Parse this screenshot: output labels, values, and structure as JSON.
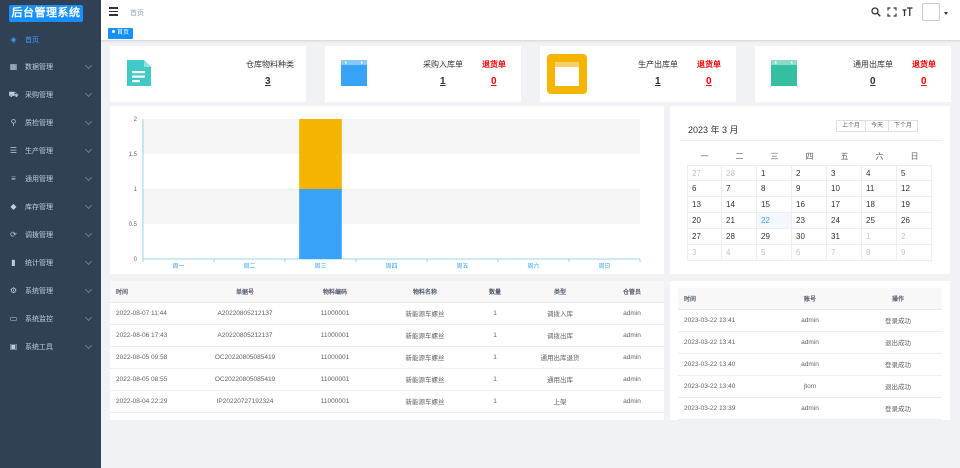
{
  "app": {
    "logo": "后台管理系统"
  },
  "sidebar": {
    "items": [
      {
        "label": "首页",
        "icon": "dashboard-icon",
        "glyph": "◈"
      },
      {
        "label": "数据管理",
        "icon": "grid-icon",
        "glyph": "▦"
      },
      {
        "label": "采购管理",
        "icon": "cart-icon",
        "glyph": "⛟"
      },
      {
        "label": "质检管理",
        "icon": "search-icon",
        "glyph": "⚲"
      },
      {
        "label": "生产管理",
        "icon": "sliders-icon",
        "glyph": "☰"
      },
      {
        "label": "通用管理",
        "icon": "list-icon",
        "glyph": "≡"
      },
      {
        "label": "库存管理",
        "icon": "layers-icon",
        "glyph": "◆"
      },
      {
        "label": "调拨管理",
        "icon": "swap-icon",
        "glyph": "⟳"
      },
      {
        "label": "统计管理",
        "icon": "bar-chart-icon",
        "glyph": "▮"
      },
      {
        "label": "系统管理",
        "icon": "gear-icon",
        "glyph": "⚙"
      },
      {
        "label": "系统监控",
        "icon": "monitor-icon",
        "glyph": "▭"
      },
      {
        "label": "系统工具",
        "icon": "toolbox-icon",
        "glyph": "▣"
      }
    ]
  },
  "header": {
    "breadcrumb": "首页"
  },
  "tags": {
    "home": "首页"
  },
  "cards": [
    {
      "label": "仓库物料种类",
      "value": "3",
      "color": "#40c9c6"
    },
    {
      "label": "采购入库单",
      "value": "1",
      "return_label": "退货单",
      "return_value": "0",
      "color": "#36a3f7"
    },
    {
      "label": "生产出库单",
      "value": "1",
      "return_label": "退货单",
      "return_value": "0",
      "color": "#f4b400"
    },
    {
      "label": "通用出库单",
      "value": "0",
      "return_label": "退货单",
      "return_value": "0",
      "color": "#34bfa3"
    }
  ],
  "chart_data": {
    "type": "bar",
    "stacked": true,
    "categories": [
      "周一",
      "周二",
      "周三",
      "周四",
      "周五",
      "周六",
      "周日"
    ],
    "series": [
      {
        "values": [
          0,
          0,
          1,
          0,
          0,
          0,
          0
        ],
        "color": "#36a3f7"
      },
      {
        "values": [
          0,
          0,
          1,
          0,
          0,
          0,
          0
        ],
        "color": "#f4b400"
      }
    ],
    "ylim": [
      0,
      2
    ],
    "yticks": [
      "0",
      "0.5",
      "1",
      "1.5",
      "2"
    ],
    "grid": "banded"
  },
  "calendar": {
    "title": "2023 年 3 月",
    "buttons": [
      "上个月",
      "今天",
      "下个月"
    ],
    "weekdays": [
      "一",
      "二",
      "三",
      "四",
      "五",
      "六",
      "日"
    ],
    "weeks": [
      [
        [
          "27",
          1
        ],
        [
          "28",
          1
        ],
        [
          "1",
          0
        ],
        [
          "2",
          0
        ],
        [
          "3",
          0
        ],
        [
          "4",
          0
        ],
        [
          "5",
          0
        ]
      ],
      [
        [
          "6",
          0
        ],
        [
          "7",
          0
        ],
        [
          "8",
          0
        ],
        [
          "9",
          0
        ],
        [
          "10",
          0
        ],
        [
          "11",
          0
        ],
        [
          "12",
          0
        ]
      ],
      [
        [
          "13",
          0
        ],
        [
          "14",
          0
        ],
        [
          "15",
          0
        ],
        [
          "16",
          0
        ],
        [
          "17",
          0
        ],
        [
          "18",
          0
        ],
        [
          "19",
          0
        ]
      ],
      [
        [
          "20",
          0
        ],
        [
          "21",
          0
        ],
        [
          "22",
          2
        ],
        [
          "23",
          0
        ],
        [
          "24",
          0
        ],
        [
          "25",
          0
        ],
        [
          "26",
          0
        ]
      ],
      [
        [
          "27",
          0
        ],
        [
          "28",
          0
        ],
        [
          "29",
          0
        ],
        [
          "30",
          0
        ],
        [
          "31",
          0
        ],
        [
          "1",
          1
        ],
        [
          "2",
          1
        ]
      ],
      [
        [
          "3",
          1
        ],
        [
          "4",
          1
        ],
        [
          "5",
          1
        ],
        [
          "6",
          1
        ],
        [
          "7",
          1
        ],
        [
          "8",
          1
        ],
        [
          "9",
          1
        ]
      ]
    ]
  },
  "records_table": {
    "columns": [
      "时间",
      "单据号",
      "物料编码",
      "物料名称",
      "数量",
      "类型",
      "仓管员"
    ],
    "rows": [
      [
        "2022-08-07 11:44",
        "A20220805212137",
        "11000001",
        "新能源车螺丝",
        "1",
        "调拨入库",
        "admin"
      ],
      [
        "2022-08-06 17:43",
        "A20220805212137",
        "11000001",
        "新能源车螺丝",
        "1",
        "调拨出库",
        "admin"
      ],
      [
        "2022-08-05 09:58",
        "OC20220805085419",
        "11000001",
        "新能源车螺丝",
        "1",
        "通用出库退货",
        "admin"
      ],
      [
        "2022-08-05 08:55",
        "OC20220805085419",
        "11000001",
        "新能源车螺丝",
        "1",
        "通用出库",
        "admin"
      ],
      [
        "2022-08-04 22:29",
        "IP20220727192324",
        "11000001",
        "新能源车螺丝",
        "1",
        "上架",
        "admin"
      ]
    ]
  },
  "login_table": {
    "columns": [
      "时间",
      "账号",
      "操作"
    ],
    "rows": [
      [
        "2023-03-22 13:41",
        "admin",
        "登录成功"
      ],
      [
        "2023-03-22 13:41",
        "admin",
        "退出成功"
      ],
      [
        "2023-03-22 13:40",
        "admin",
        "登录成功"
      ],
      [
        "2023-03-22 13:40",
        "jtom",
        "退出成功"
      ],
      [
        "2023-03-22 13:39",
        "admin",
        "登录成功"
      ]
    ]
  }
}
